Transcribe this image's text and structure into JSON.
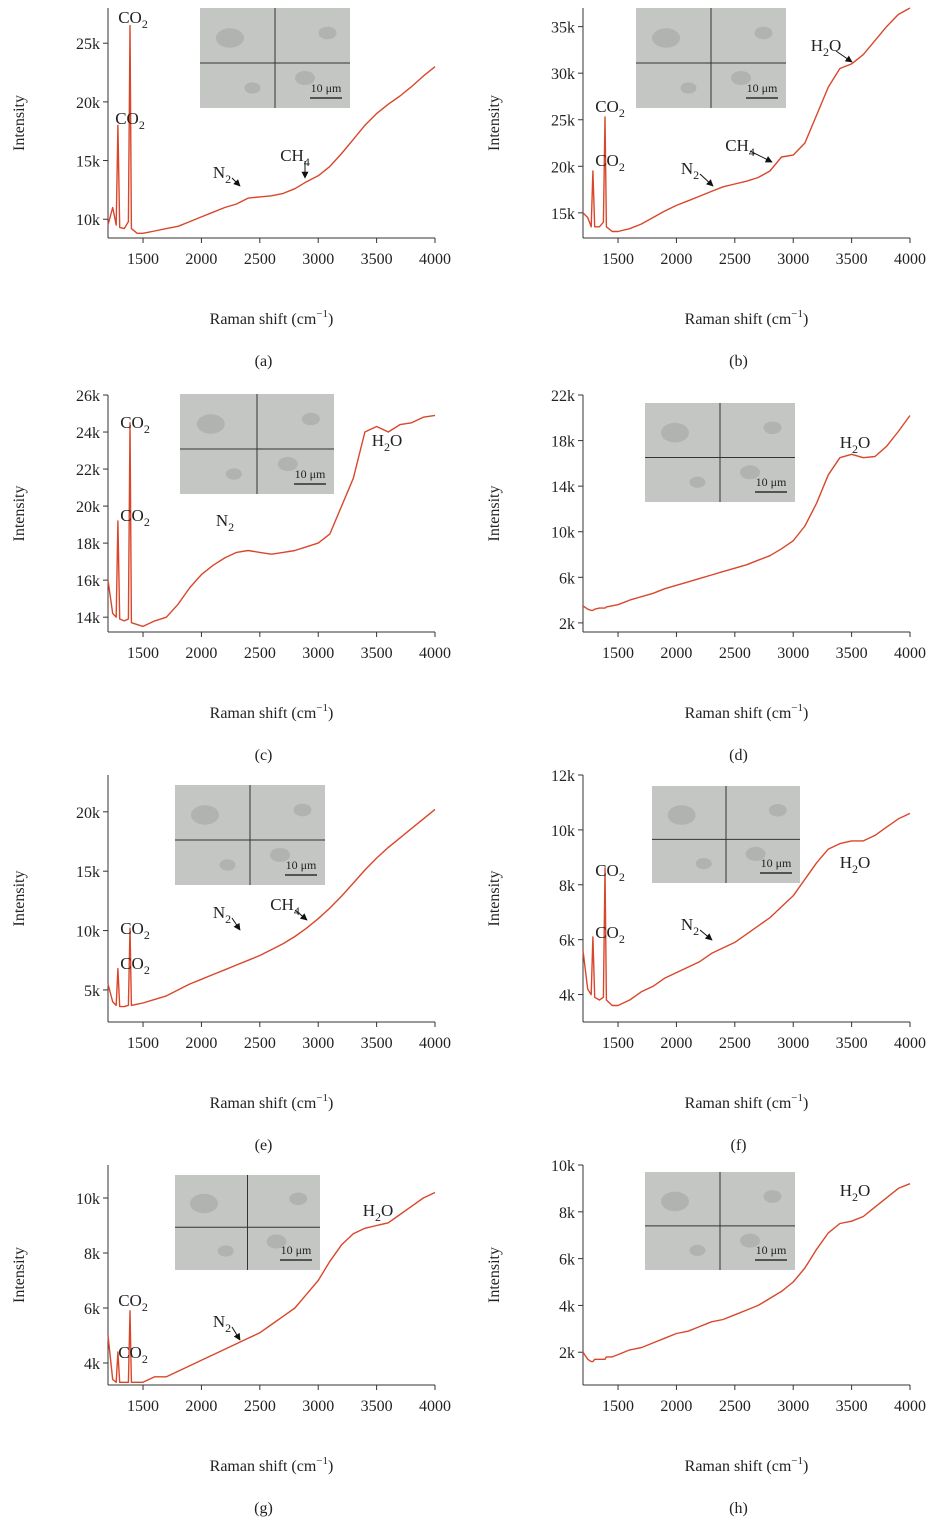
{
  "chart_data": [
    {
      "type": "line",
      "panel_label": "(a)",
      "ylabel": "Intensity",
      "xlabel": [
        "Raman shift (cm",
        "−1",
        ")"
      ],
      "color": "#d9472b",
      "scale_bar": "10 μm",
      "xlim": [
        1200,
        4000
      ],
      "xticks": [
        1500,
        2000,
        2500,
        3000,
        3500,
        4000
      ],
      "ylim": [
        8400,
        28000
      ],
      "yticks": [
        {
          "value": 10000,
          "label": "10k"
        },
        {
          "value": 15000,
          "label": "15k"
        },
        {
          "value": 20000,
          "label": "20k"
        },
        {
          "value": 25000,
          "label": "25k"
        }
      ],
      "annotations": [
        [
          "CO",
          "2"
        ],
        [
          "CO",
          "2"
        ],
        [
          "N",
          "2"
        ],
        [
          "CH",
          "4"
        ]
      ],
      "x": [
        1200,
        1240,
        1270,
        1285,
        1300,
        1340,
        1375,
        1388,
        1400,
        1450,
        1500,
        1600,
        1700,
        1800,
        1900,
        2000,
        2100,
        2200,
        2300,
        2400,
        2500,
        2600,
        2700,
        2800,
        2900,
        3000,
        3100,
        3200,
        3300,
        3400,
        3500,
        3600,
        3700,
        3800,
        3900,
        4000
      ],
      "values": [
        9500,
        11000,
        9500,
        18000,
        9300,
        9200,
        9800,
        26500,
        9200,
        8800,
        8800,
        9000,
        9200,
        9400,
        9800,
        10200,
        10600,
        11000,
        11300,
        11800,
        11900,
        12000,
        12200,
        12600,
        13200,
        13700,
        14500,
        15600,
        16800,
        18000,
        19000,
        19800,
        20500,
        21300,
        22200,
        23000
      ]
    },
    {
      "type": "line",
      "panel_label": "(b)",
      "ylabel": "Intensity",
      "xlabel": [
        "Raman shift (cm",
        "−1",
        ")"
      ],
      "color": "#d9472b",
      "scale_bar": "10 μm",
      "xlim": [
        1200,
        4000
      ],
      "xticks": [
        1500,
        2000,
        2500,
        3000,
        3500,
        4000
      ],
      "ylim": [
        12300,
        37000
      ],
      "yticks": [
        {
          "value": 15000,
          "label": "15k"
        },
        {
          "value": 20000,
          "label": "20k"
        },
        {
          "value": 25000,
          "label": "25k"
        },
        {
          "value": 30000,
          "label": "30k"
        },
        {
          "value": 35000,
          "label": "35k"
        }
      ],
      "annotations": [
        [
          "CO",
          "2"
        ],
        [
          "CO",
          "2"
        ],
        [
          "N",
          "2"
        ],
        [
          "CH",
          "4"
        ],
        [
          "H",
          "2",
          "O"
        ]
      ],
      "x": [
        1200,
        1240,
        1270,
        1285,
        1300,
        1340,
        1375,
        1388,
        1400,
        1450,
        1500,
        1600,
        1700,
        1800,
        1900,
        2000,
        2100,
        2200,
        2300,
        2400,
        2500,
        2600,
        2700,
        2800,
        2900,
        3000,
        3100,
        3200,
        3300,
        3400,
        3500,
        3600,
        3700,
        3800,
        3900,
        4000
      ],
      "values": [
        15000,
        14500,
        13500,
        19500,
        13500,
        13500,
        14000,
        25300,
        13500,
        13000,
        13000,
        13300,
        13800,
        14500,
        15200,
        15800,
        16300,
        16800,
        17300,
        17800,
        18100,
        18400,
        18800,
        19500,
        21000,
        21200,
        22500,
        25500,
        28500,
        30500,
        31000,
        32000,
        33500,
        35000,
        36300,
        37000
      ]
    },
    {
      "type": "line",
      "panel_label": "(c)",
      "ylabel": "Intensity",
      "xlabel": [
        "Raman shift (cm",
        "−1",
        ")"
      ],
      "color": "#d9472b",
      "scale_bar": "10 μm",
      "xlim": [
        1200,
        4000
      ],
      "xticks": [
        1500,
        2000,
        2500,
        3000,
        3500,
        4000
      ],
      "ylim": [
        13200,
        26000
      ],
      "yticks": [
        {
          "value": 14000,
          "label": "14k"
        },
        {
          "value": 16000,
          "label": "16k"
        },
        {
          "value": 18000,
          "label": "18k"
        },
        {
          "value": 20000,
          "label": "20k"
        },
        {
          "value": 22000,
          "label": "22k"
        },
        {
          "value": 24000,
          "label": "24k"
        },
        {
          "value": 26000,
          "label": "26k"
        }
      ],
      "annotations": [
        [
          "CO",
          "2"
        ],
        [
          "CO",
          "2"
        ],
        [
          "N",
          "2"
        ],
        [
          "H",
          "2",
          "O"
        ]
      ],
      "x": [
        1200,
        1240,
        1270,
        1285,
        1300,
        1340,
        1375,
        1388,
        1400,
        1450,
        1500,
        1600,
        1700,
        1800,
        1900,
        2000,
        2100,
        2200,
        2300,
        2400,
        2500,
        2600,
        2700,
        2800,
        2900,
        3000,
        3100,
        3200,
        3300,
        3400,
        3500,
        3600,
        3700,
        3800,
        3900,
        4000
      ],
      "values": [
        16000,
        14200,
        14000,
        19200,
        13900,
        13800,
        13900,
        24500,
        13700,
        13600,
        13500,
        13800,
        14000,
        14700,
        15600,
        16300,
        16800,
        17200,
        17500,
        17600,
        17500,
        17400,
        17500,
        17600,
        17800,
        18000,
        18500,
        20000,
        21500,
        24000,
        24300,
        24000,
        24400,
        24500,
        24800,
        24900
      ]
    },
    {
      "type": "line",
      "panel_label": "(d)",
      "ylabel": "Intensity",
      "xlabel": [
        "Raman shift (cm",
        "−1",
        ")"
      ],
      "color": "#d9472b",
      "scale_bar": "10 μm",
      "xlim": [
        1200,
        4000
      ],
      "xticks": [
        1500,
        2000,
        2500,
        3000,
        3500,
        4000
      ],
      "ylim": [
        1200,
        22000
      ],
      "yticks": [
        {
          "value": 2000,
          "label": "2k"
        },
        {
          "value": 6000,
          "label": "6k"
        },
        {
          "value": 10000,
          "label": "10k"
        },
        {
          "value": 14000,
          "label": "14k"
        },
        {
          "value": 18000,
          "label": "18k"
        },
        {
          "value": 22000,
          "label": "22k"
        }
      ],
      "annotations": [
        [
          "H",
          "2",
          "O"
        ]
      ],
      "x": [
        1200,
        1240,
        1270,
        1285,
        1300,
        1340,
        1375,
        1388,
        1400,
        1450,
        1500,
        1600,
        1700,
        1800,
        1900,
        2000,
        2100,
        2200,
        2300,
        2400,
        2500,
        2600,
        2700,
        2800,
        2900,
        3000,
        3100,
        3200,
        3300,
        3400,
        3500,
        3600,
        3700,
        3800,
        3900,
        4000
      ],
      "values": [
        3500,
        3200,
        3100,
        3100,
        3200,
        3300,
        3300,
        3300,
        3400,
        3500,
        3600,
        4000,
        4300,
        4600,
        5000,
        5300,
        5600,
        5900,
        6200,
        6500,
        6800,
        7100,
        7500,
        7900,
        8500,
        9200,
        10500,
        12500,
        15000,
        16500,
        16800,
        16500,
        16600,
        17500,
        18800,
        20200
      ]
    },
    {
      "type": "line",
      "panel_label": "(e)",
      "ylabel": "Intensity",
      "xlabel": [
        "Raman shift (cm",
        "−1",
        ")"
      ],
      "color": "#d9472b",
      "scale_bar": "10 μm",
      "xlim": [
        1200,
        4000
      ],
      "xticks": [
        1500,
        2000,
        2500,
        3000,
        3500,
        4000
      ],
      "ylim": [
        2300,
        23100
      ],
      "yticks": [
        {
          "value": 5000,
          "label": "5k"
        },
        {
          "value": 10000,
          "label": "10k"
        },
        {
          "value": 15000,
          "label": "15k"
        },
        {
          "value": 20000,
          "label": "20k"
        }
      ],
      "annotations": [
        [
          "CO",
          "2"
        ],
        [
          "CO",
          "2"
        ],
        [
          "N",
          "2"
        ],
        [
          "CH",
          "4"
        ]
      ],
      "x": [
        1200,
        1240,
        1270,
        1285,
        1300,
        1340,
        1375,
        1388,
        1400,
        1450,
        1500,
        1600,
        1700,
        1800,
        1900,
        2000,
        2100,
        2200,
        2300,
        2400,
        2500,
        2600,
        2700,
        2800,
        2900,
        3000,
        3100,
        3200,
        3300,
        3400,
        3500,
        3600,
        3700,
        3800,
        3900,
        4000
      ],
      "values": [
        5500,
        4000,
        3700,
        6800,
        3600,
        3600,
        3700,
        10200,
        3700,
        3800,
        3900,
        4200,
        4500,
        5000,
        5500,
        5900,
        6300,
        6700,
        7100,
        7500,
        7900,
        8400,
        8900,
        9500,
        10200,
        11000,
        11900,
        12900,
        14000,
        15100,
        16100,
        17000,
        17800,
        18600,
        19400,
        20200
      ]
    },
    {
      "type": "line",
      "panel_label": "(f)",
      "ylabel": "Intensity",
      "xlabel": [
        "Raman shift (cm",
        "−1",
        ")"
      ],
      "color": "#d9472b",
      "scale_bar": "10 μm",
      "xlim": [
        1200,
        4000
      ],
      "xticks": [
        1500,
        2000,
        2500,
        3000,
        3500,
        4000
      ],
      "ylim": [
        3000,
        12000
      ],
      "yticks": [
        {
          "value": 4000,
          "label": "4k"
        },
        {
          "value": 6000,
          "label": "6k"
        },
        {
          "value": 8000,
          "label": "8k"
        },
        {
          "value": 10000,
          "label": "10k"
        },
        {
          "value": 12000,
          "label": "12k"
        }
      ],
      "annotations": [
        [
          "CO",
          "2"
        ],
        [
          "CO",
          "2"
        ],
        [
          "N",
          "2"
        ],
        [
          "H",
          "2",
          "O"
        ]
      ],
      "x": [
        1200,
        1240,
        1270,
        1285,
        1300,
        1340,
        1375,
        1388,
        1400,
        1450,
        1500,
        1600,
        1700,
        1800,
        1900,
        2000,
        2100,
        2200,
        2300,
        2400,
        2500,
        2600,
        2700,
        2800,
        2900,
        3000,
        3100,
        3200,
        3300,
        3400,
        3500,
        3600,
        3700,
        3800,
        3900,
        4000
      ],
      "values": [
        5600,
        4200,
        4000,
        6100,
        3900,
        3800,
        3900,
        8600,
        3800,
        3600,
        3600,
        3800,
        4100,
        4300,
        4600,
        4800,
        5000,
        5200,
        5500,
        5700,
        5900,
        6200,
        6500,
        6800,
        7200,
        7600,
        8200,
        8800,
        9300,
        9500,
        9600,
        9600,
        9800,
        10100,
        10400,
        10600
      ]
    },
    {
      "type": "line",
      "panel_label": "(g)",
      "ylabel": "Intensity",
      "xlabel": [
        "Raman shift (cm",
        "−1",
        ")"
      ],
      "color": "#d9472b",
      "scale_bar": "10 μm",
      "xlim": [
        1200,
        4000
      ],
      "xticks": [
        1500,
        2000,
        2500,
        3000,
        3500,
        4000
      ],
      "ylim": [
        3200,
        11200
      ],
      "yticks": [
        {
          "value": 4000,
          "label": "4k"
        },
        {
          "value": 6000,
          "label": "6k"
        },
        {
          "value": 8000,
          "label": "8k"
        },
        {
          "value": 10000,
          "label": "10k"
        }
      ],
      "annotations": [
        [
          "CO",
          "2"
        ],
        [
          "CO",
          "2"
        ],
        [
          "N",
          "2"
        ],
        [
          "H",
          "2",
          "O"
        ]
      ],
      "x": [
        1200,
        1240,
        1270,
        1285,
        1300,
        1340,
        1375,
        1388,
        1400,
        1450,
        1500,
        1600,
        1700,
        1800,
        1900,
        2000,
        2100,
        2200,
        2300,
        2400,
        2500,
        2600,
        2700,
        2800,
        2900,
        3000,
        3100,
        3200,
        3300,
        3400,
        3500,
        3600,
        3700,
        3800,
        3900,
        4000
      ],
      "values": [
        5000,
        3400,
        3300,
        4400,
        3300,
        3300,
        3300,
        5900,
        3300,
        3300,
        3300,
        3500,
        3500,
        3700,
        3900,
        4100,
        4300,
        4500,
        4700,
        4900,
        5100,
        5400,
        5700,
        6000,
        6500,
        7000,
        7700,
        8300,
        8700,
        8900,
        9000,
        9100,
        9400,
        9700,
        10000,
        10200
      ]
    },
    {
      "type": "line",
      "panel_label": "(h)",
      "ylabel": "Intensity",
      "xlabel": [
        "Raman shift (cm",
        "−1",
        ")"
      ],
      "color": "#d9472b",
      "scale_bar": "10 μm",
      "xlim": [
        1200,
        4000
      ],
      "xticks": [
        1500,
        2000,
        2500,
        3000,
        3500,
        4000
      ],
      "ylim": [
        600,
        10000
      ],
      "yticks": [
        {
          "value": 2000,
          "label": "2k"
        },
        {
          "value": 4000,
          "label": "4k"
        },
        {
          "value": 6000,
          "label": "6k"
        },
        {
          "value": 8000,
          "label": "8k"
        },
        {
          "value": 10000,
          "label": "10k"
        }
      ],
      "annotations": [
        [
          "H",
          "2",
          "O"
        ]
      ],
      "x": [
        1200,
        1240,
        1270,
        1285,
        1300,
        1340,
        1375,
        1388,
        1400,
        1450,
        1500,
        1600,
        1700,
        1800,
        1900,
        2000,
        2100,
        2200,
        2300,
        2400,
        2500,
        2600,
        2700,
        2800,
        2900,
        3000,
        3100,
        3200,
        3300,
        3400,
        3500,
        3600,
        3700,
        3800,
        3900,
        4000
      ],
      "values": [
        2000,
        1700,
        1600,
        1600,
        1700,
        1700,
        1700,
        1700,
        1800,
        1800,
        1900,
        2100,
        2200,
        2400,
        2600,
        2800,
        2900,
        3100,
        3300,
        3400,
        3600,
        3800,
        4000,
        4300,
        4600,
        5000,
        5600,
        6400,
        7100,
        7500,
        7600,
        7800,
        8200,
        8600,
        9000,
        9200
      ]
    }
  ]
}
